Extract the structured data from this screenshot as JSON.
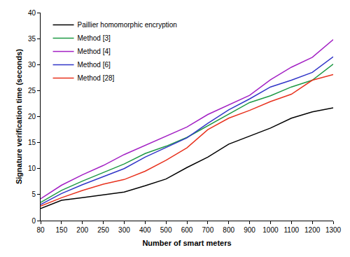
{
  "chart_data": {
    "type": "line",
    "x_label": "Number of smart meters",
    "y_label": "Signature verification time (seconds)",
    "categories": [
      "80",
      "150",
      "200",
      "250",
      "300",
      "400",
      "500",
      "600",
      "700",
      "800",
      "900",
      "1000",
      "1100",
      "1200",
      "1300"
    ],
    "series": [
      {
        "name": "Paillier homomorphic encryption",
        "color": "#000000",
        "values": [
          2.3,
          3.9,
          4.4,
          5.0,
          5.5,
          6.7,
          8.0,
          10.2,
          12.2,
          14.7,
          16.3,
          17.8,
          19.7,
          20.9,
          21.7
        ]
      },
      {
        "name": "Method [3]",
        "color": "#1f9a45",
        "values": [
          3.5,
          5.8,
          7.6,
          9.2,
          10.9,
          12.9,
          14.3,
          16.0,
          18.2,
          20.5,
          22.7,
          24.0,
          25.7,
          27.0,
          30.1
        ]
      },
      {
        "name": "Method [4]",
        "color": "#a321c4",
        "values": [
          4.2,
          6.8,
          8.8,
          10.6,
          12.7,
          14.5,
          16.2,
          18.0,
          20.4,
          22.3,
          24.1,
          27.1,
          29.5,
          31.4,
          34.8
        ]
      },
      {
        "name": "Method [6]",
        "color": "#3236c8",
        "values": [
          3.1,
          5.2,
          6.9,
          8.5,
          10.0,
          12.2,
          14.0,
          15.9,
          18.7,
          21.3,
          23.4,
          25.7,
          27.0,
          28.5,
          31.5
        ]
      },
      {
        "name": "Method [28]",
        "color": "#e8321e",
        "values": [
          2.8,
          4.4,
          5.8,
          7.0,
          7.9,
          9.5,
          11.6,
          14.0,
          17.5,
          19.7,
          21.2,
          22.9,
          24.3,
          27.0,
          28.1
        ]
      }
    ],
    "ylim": [
      0,
      40
    ],
    "yticks": [
      0,
      5,
      10,
      15,
      20,
      25,
      30,
      35,
      40
    ],
    "grid": false,
    "legend": "top left"
  }
}
